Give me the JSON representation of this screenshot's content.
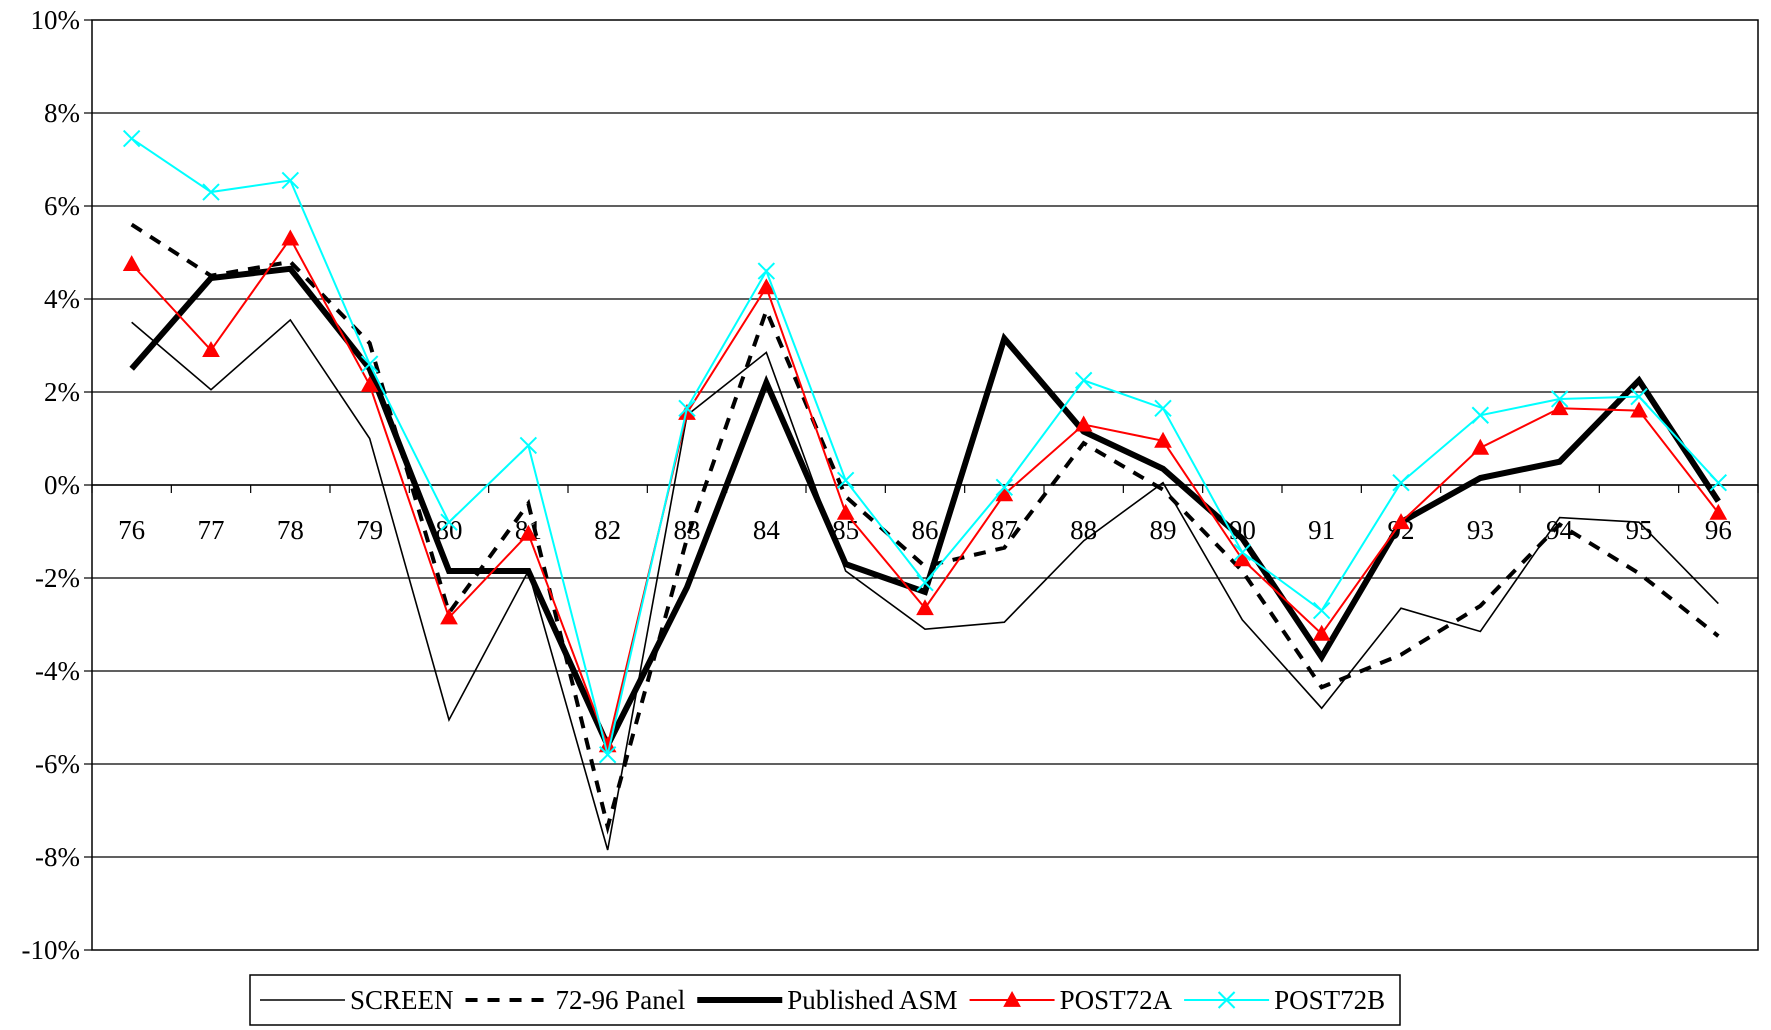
{
  "chart_data": {
    "type": "line",
    "categories": [
      "76",
      "77",
      "78",
      "79",
      "80",
      "81",
      "82",
      "83",
      "84",
      "85",
      "86",
      "87",
      "88",
      "89",
      "90",
      "91",
      "92",
      "93",
      "94",
      "95",
      "96"
    ],
    "y_ticks": [
      "10%",
      "8%",
      "6%",
      "4%",
      "2%",
      "0%",
      "-2%",
      "-4%",
      "-6%",
      "-8%",
      "-10%"
    ],
    "ylim": [
      -10,
      10
    ],
    "y_unit": "%",
    "grid": true,
    "legend_position": "bottom",
    "series": [
      {
        "name": "SCREEN",
        "color": "#000000",
        "style": "thin",
        "values": [
          3.5,
          2.05,
          3.55,
          1.0,
          -5.05,
          -1.85,
          -7.85,
          1.5,
          2.85,
          -1.85,
          -3.1,
          -2.95,
          -1.2,
          0.05,
          -2.9,
          -4.8,
          -2.65,
          -3.15,
          -0.7,
          -0.8,
          -2.55
        ]
      },
      {
        "name": "72-96 Panel",
        "color": "#000000",
        "style": "dashed",
        "values": [
          5.6,
          4.5,
          4.8,
          3.05,
          -2.75,
          -0.4,
          -7.35,
          -1.15,
          3.75,
          -0.25,
          -1.75,
          -1.35,
          0.9,
          -0.1,
          -1.85,
          -4.35,
          -3.65,
          -2.6,
          -0.85,
          -1.9,
          -3.25
        ]
      },
      {
        "name": "Published ASM",
        "color": "#000000",
        "style": "thick",
        "values": [
          2.5,
          4.45,
          4.65,
          2.5,
          -1.85,
          -1.85,
          -5.6,
          -2.2,
          2.2,
          -1.7,
          -2.3,
          3.15,
          1.15,
          0.35,
          -1.15,
          -3.7,
          -0.8,
          0.15,
          0.5,
          2.25,
          -0.35
        ]
      },
      {
        "name": "POST72A",
        "color": "#ff0000",
        "style": "triangle",
        "values": [
          4.75,
          2.9,
          5.3,
          2.15,
          -2.85,
          -1.05,
          -5.6,
          1.55,
          4.25,
          -0.6,
          -2.65,
          -0.2,
          1.3,
          0.95,
          -1.6,
          -3.2,
          -0.8,
          0.8,
          1.65,
          1.6,
          -0.6
        ]
      },
      {
        "name": "POST72B",
        "color": "#00ffff",
        "style": "cross",
        "values": [
          7.45,
          6.3,
          6.55,
          2.6,
          -0.8,
          0.85,
          -5.8,
          1.65,
          4.6,
          0.1,
          -2.1,
          -0.05,
          2.25,
          1.65,
          -1.45,
          -2.7,
          0.05,
          1.5,
          1.85,
          1.9,
          0.05
        ]
      }
    ]
  }
}
